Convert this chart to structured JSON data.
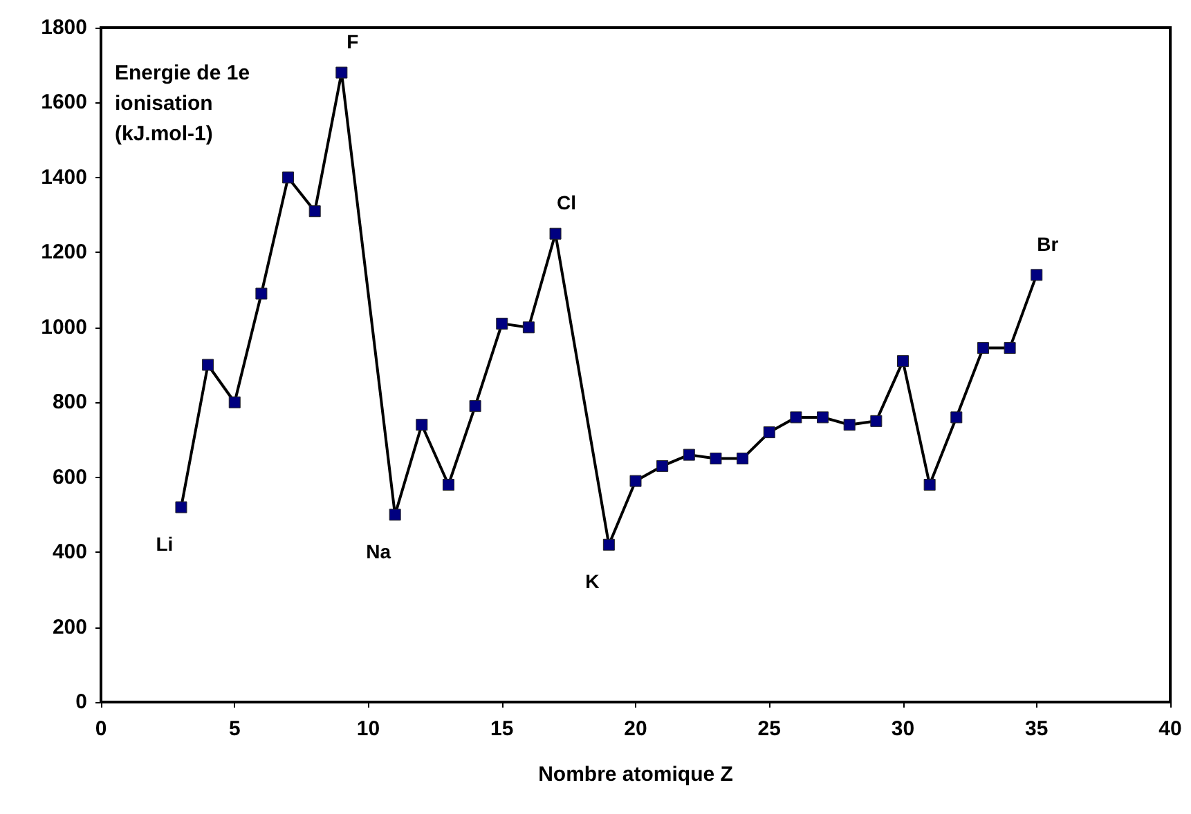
{
  "chart_data": {
    "type": "line",
    "xlabel": "Nombre atomique Z",
    "ylabel": "Energie de 1e ionisation (kJ.mol-1)",
    "x": [
      3,
      4,
      5,
      6,
      7,
      8,
      9,
      11,
      12,
      13,
      14,
      15,
      16,
      17,
      19,
      20,
      21,
      22,
      23,
      24,
      25,
      26,
      27,
      28,
      29,
      30,
      31,
      32,
      33,
      34,
      35
    ],
    "series": [
      {
        "color": "#000080",
        "values": [
          520,
          900,
          800,
          1090,
          1400,
          1310,
          1680,
          500,
          740,
          580,
          790,
          1010,
          1000,
          1250,
          420,
          590,
          630,
          660,
          650,
          650,
          720,
          760,
          760,
          740,
          750,
          910,
          580,
          760,
          945,
          945,
          1140
        ]
      }
    ],
    "xlim": [
      0,
      40
    ],
    "xticks": [
      0,
      5,
      10,
      15,
      20,
      25,
      30,
      35,
      40
    ],
    "ylim": [
      0,
      1800
    ],
    "yticks": [
      0,
      200,
      400,
      600,
      800,
      1000,
      1200,
      1400,
      1600,
      1800
    ],
    "marker": "square",
    "line_style": "solid",
    "annotations": [
      {
        "text": "Li",
        "x": 3,
        "y": 520
      },
      {
        "text": "F",
        "x": 9,
        "y": 1680
      },
      {
        "text": "Na",
        "x": 11,
        "y": 500
      },
      {
        "text": "Cl",
        "x": 17,
        "y": 1250
      },
      {
        "text": "K",
        "x": 19,
        "y": 420
      },
      {
        "text": "Br",
        "x": 35,
        "y": 1140
      }
    ]
  }
}
